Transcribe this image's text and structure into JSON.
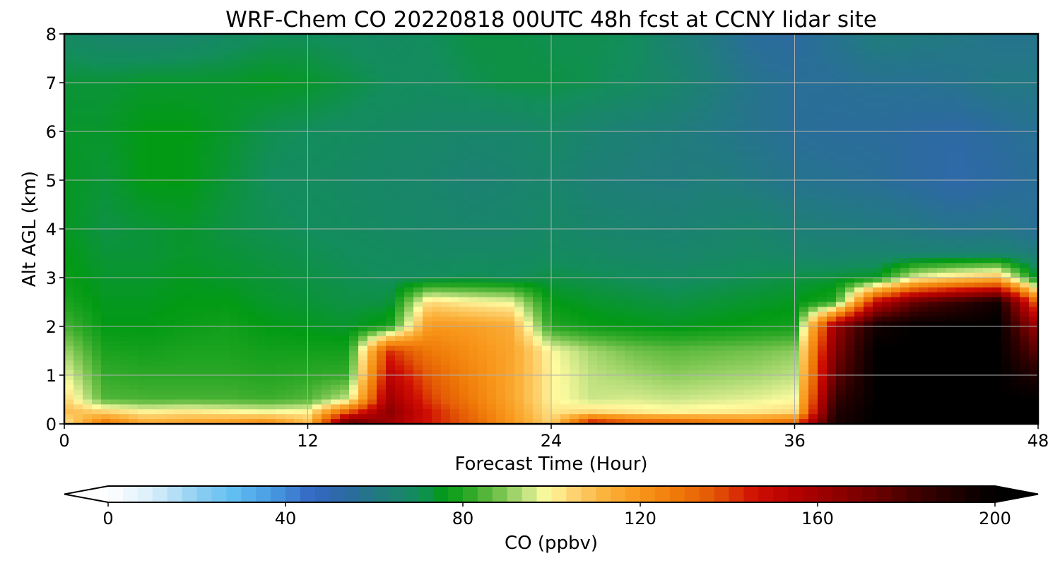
{
  "chart_data": {
    "type": "heatmap",
    "title": "WRF-Chem CO  20220818 00UTC 48h fcst at CCNY lidar site",
    "xlabel": "Forecast Time (Hour)",
    "ylabel": "Alt AGL (km)",
    "xlim": [
      0,
      48
    ],
    "ylim": [
      0,
      8
    ],
    "xticks": [
      0,
      12,
      24,
      36,
      48
    ],
    "yticks": [
      0,
      1,
      2,
      3,
      4,
      5,
      6,
      7,
      8
    ],
    "grid": true,
    "colorbar": {
      "label": "CO  (ppbv)",
      "min": 0,
      "max": 200,
      "ticks": [
        0,
        40,
        80,
        120,
        160,
        200
      ],
      "extend": "both",
      "colors": [
        [
          0,
          "#ffffff"
        ],
        [
          10,
          "#d8eefa"
        ],
        [
          20,
          "#8fd0f2"
        ],
        [
          28,
          "#62bff2"
        ],
        [
          36,
          "#4a9fe4"
        ],
        [
          46,
          "#3468c4"
        ],
        [
          54,
          "#2c6aa0"
        ],
        [
          62,
          "#1f7d7a"
        ],
        [
          70,
          "#138d5c"
        ],
        [
          76,
          "#029a14"
        ],
        [
          82,
          "#33aa2a"
        ],
        [
          88,
          "#72c24a"
        ],
        [
          94,
          "#bde07f"
        ],
        [
          99,
          "#fffca0"
        ],
        [
          104,
          "#fdd878"
        ],
        [
          112,
          "#fbb33d"
        ],
        [
          120,
          "#f8961a"
        ],
        [
          128,
          "#ef7a08"
        ],
        [
          136,
          "#e45a05"
        ],
        [
          146,
          "#cf0e03"
        ],
        [
          156,
          "#b00000"
        ],
        [
          170,
          "#7a0000"
        ],
        [
          186,
          "#300000"
        ],
        [
          200,
          "#000000"
        ]
      ]
    },
    "x": [
      0,
      2,
      4,
      6,
      8,
      10,
      12,
      14,
      16,
      18,
      20,
      22,
      24,
      26,
      28,
      30,
      32,
      34,
      36,
      38,
      40,
      42,
      44,
      46,
      48
    ],
    "y": [
      0,
      0.25,
      0.5,
      1,
      1.5,
      2,
      2.5,
      3,
      3.5,
      4,
      5,
      6,
      7,
      8
    ],
    "z": [
      [
        100,
        130,
        115,
        118,
        120,
        125,
        110,
        180,
        160,
        145,
        135,
        120,
        105,
        150,
        140,
        138,
        132,
        130,
        135,
        192,
        200,
        200,
        200,
        200,
        200
      ],
      [
        110,
        105,
        100,
        102,
        100,
        98,
        100,
        135,
        165,
        145,
        132,
        118,
        102,
        104,
        102,
        100,
        101,
        102,
        104,
        190,
        200,
        200,
        200,
        200,
        200
      ],
      [
        105,
        85,
        84,
        84,
        84,
        83,
        85,
        95,
        160,
        140,
        128,
        116,
        100,
        95,
        96,
        95,
        96,
        97,
        99,
        185,
        200,
        200,
        200,
        200,
        200
      ],
      [
        98,
        82,
        81,
        81,
        81,
        80,
        81,
        82,
        152,
        135,
        125,
        116,
        100,
        94,
        92,
        90,
        91,
        92,
        94,
        175,
        200,
        200,
        200,
        200,
        190
      ],
      [
        92,
        79,
        78,
        79,
        79,
        78,
        78,
        78,
        142,
        128,
        122,
        116,
        99,
        92,
        88,
        86,
        87,
        88,
        90,
        168,
        200,
        200,
        200,
        200,
        175
      ],
      [
        84,
        76,
        76,
        77,
        78,
        76,
        75,
        74,
        78,
        120,
        118,
        114,
        80,
        77,
        76,
        75,
        76,
        77,
        78,
        162,
        195,
        200,
        200,
        200,
        160
      ],
      [
        79,
        75,
        75,
        76,
        76,
        74,
        73,
        72,
        72,
        104,
        100,
        98,
        76,
        74,
        73,
        72,
        73,
        74,
        75,
        80,
        150,
        175,
        185,
        195,
        130
      ],
      [
        77,
        74,
        74,
        75,
        74,
        73,
        72,
        71,
        70,
        70,
        71,
        70,
        72,
        71,
        70,
        69,
        70,
        71,
        72,
        73,
        75,
        98,
        105,
        110,
        72
      ],
      [
        76,
        73,
        73,
        74,
        73,
        72,
        71,
        70,
        69,
        68,
        68,
        68,
        69,
        68,
        67,
        66,
        67,
        68,
        66,
        65,
        65,
        64,
        64,
        64,
        62
      ],
      [
        75,
        72,
        73,
        74,
        72,
        71,
        70,
        69,
        68,
        67,
        66,
        66,
        68,
        66,
        65,
        64,
        65,
        66,
        63,
        62,
        61,
        60,
        58,
        59,
        56
      ],
      [
        75,
        73,
        76,
        76,
        73,
        70,
        69,
        68,
        67,
        66,
        64,
        65,
        66,
        63,
        62,
        61,
        62,
        60,
        58,
        57,
        56,
        54,
        52,
        54,
        56
      ],
      [
        74,
        74,
        76,
        76,
        74,
        71,
        70,
        69,
        68,
        67,
        66,
        66,
        68,
        65,
        63,
        62,
        60,
        58,
        56,
        55,
        55,
        54,
        53,
        55,
        57
      ],
      [
        73,
        73,
        74,
        74,
        74,
        75,
        74,
        72,
        70,
        69,
        71,
        72,
        72,
        71,
        69,
        66,
        62,
        58,
        56,
        56,
        57,
        57,
        58,
        60,
        60
      ],
      [
        68,
        66,
        65,
        66,
        68,
        70,
        70,
        69,
        68,
        70,
        72,
        72,
        71,
        71,
        70,
        64,
        60,
        55,
        54,
        58,
        62,
        61,
        60,
        58,
        58
      ]
    ]
  }
}
